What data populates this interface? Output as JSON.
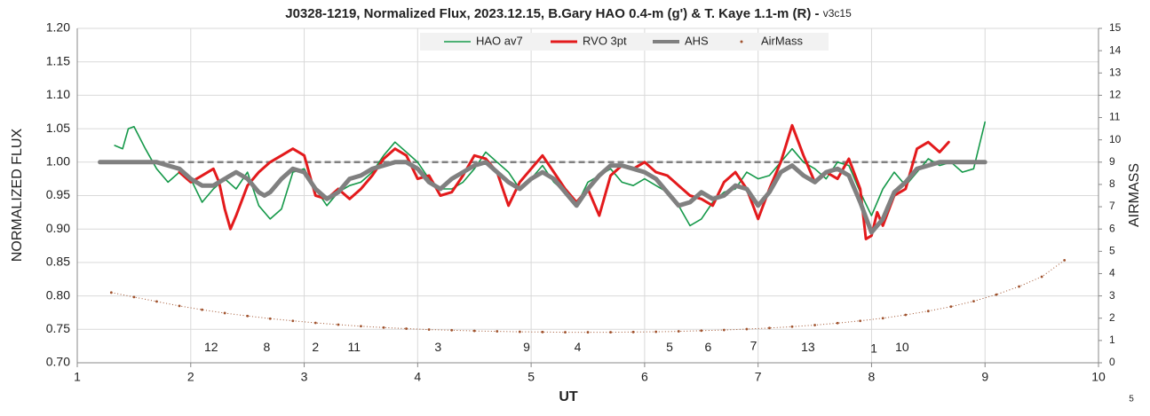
{
  "chart_data": {
    "type": "line",
    "title": "J0328-1219, Normalized Flux, 2023.12.15, B.Gary HAO 0.4-m (g') & T. Kaye 1.1-m (R) - ",
    "subtitle": "v3c15",
    "xlabel": "UT",
    "ylabel": "NORMALIZED FLUX",
    "y2label": "AIRMASS",
    "footnote": "5",
    "xlim": [
      1,
      10
    ],
    "xticks": [
      1,
      2,
      3,
      4,
      5,
      6,
      7,
      8,
      9,
      10
    ],
    "ylim": [
      0.7,
      1.2
    ],
    "yticks": [
      {
        "value": 0.7,
        "label": "0.70"
      },
      0.75,
      {
        "value": 0.8,
        "label": "0.80"
      },
      0.85,
      {
        "value": 0.9,
        "label": "0.90"
      },
      0.95,
      {
        "value": 1.0,
        "label": "1.00"
      },
      1.05,
      {
        "value": 1.1,
        "label": "1.10"
      },
      1.15,
      {
        "value": 1.2,
        "label": "1.20"
      }
    ],
    "y2lim": [
      0,
      15
    ],
    "y2ticks": [
      0,
      1,
      2,
      3,
      4,
      5,
      6,
      7,
      8,
      9,
      10,
      11,
      12,
      13,
      14,
      15
    ],
    "grid": true,
    "legend": "top",
    "hline": 1.0,
    "series": [
      {
        "name": "HAO av7",
        "color": "#16994a",
        "width": 1.6,
        "x": [
          1.33,
          1.4,
          1.45,
          1.5,
          1.6,
          1.7,
          1.8,
          1.9,
          2.0,
          2.1,
          2.2,
          2.3,
          2.4,
          2.5,
          2.6,
          2.7,
          2.8,
          2.9,
          3.0,
          3.1,
          3.2,
          3.3,
          3.4,
          3.5,
          3.6,
          3.7,
          3.8,
          3.9,
          4.0,
          4.1,
          4.2,
          4.3,
          4.4,
          4.5,
          4.6,
          4.7,
          4.8,
          4.9,
          5.0,
          5.1,
          5.2,
          5.3,
          5.4,
          5.5,
          5.6,
          5.7,
          5.8,
          5.9,
          6.0,
          6.1,
          6.2,
          6.3,
          6.4,
          6.5,
          6.6,
          6.7,
          6.8,
          6.9,
          7.0,
          7.1,
          7.2,
          7.3,
          7.4,
          7.5,
          7.6,
          7.7,
          7.8,
          7.9,
          8.0,
          8.1,
          8.2,
          8.3,
          8.4,
          8.5,
          8.6,
          8.7,
          8.8,
          8.9,
          9.0
        ],
        "values": [
          1.025,
          1.02,
          1.05,
          1.053,
          1.02,
          0.99,
          0.97,
          0.985,
          0.975,
          0.94,
          0.96,
          0.975,
          0.96,
          0.985,
          0.935,
          0.915,
          0.93,
          0.985,
          0.99,
          0.96,
          0.935,
          0.955,
          0.965,
          0.97,
          0.985,
          1.01,
          1.03,
          1.015,
          1.0,
          0.975,
          0.96,
          0.96,
          0.97,
          0.99,
          1.015,
          1.0,
          0.985,
          0.96,
          0.975,
          0.995,
          0.97,
          0.955,
          0.935,
          0.97,
          0.98,
          0.99,
          0.97,
          0.965,
          0.975,
          0.965,
          0.955,
          0.935,
          0.905,
          0.915,
          0.94,
          0.955,
          0.96,
          0.985,
          0.975,
          0.98,
          1.0,
          1.02,
          1.0,
          0.99,
          0.975,
          1.0,
          0.995,
          0.955,
          0.92,
          0.96,
          0.985,
          0.965,
          0.985,
          1.005,
          0.995,
          1.0,
          0.985,
          0.99,
          1.06
        ]
      },
      {
        "name": "RVO 3pt",
        "color": "#e31a1c",
        "width": 3,
        "x": [
          1.9,
          2.0,
          2.1,
          2.2,
          2.25,
          2.3,
          2.35,
          2.4,
          2.5,
          2.6,
          2.7,
          2.8,
          2.9,
          3.0,
          3.05,
          3.1,
          3.2,
          3.3,
          3.4,
          3.5,
          3.6,
          3.7,
          3.8,
          3.9,
          4.0,
          4.1,
          4.2,
          4.3,
          4.4,
          4.5,
          4.6,
          4.7,
          4.8,
          4.9,
          5.0,
          5.1,
          5.2,
          5.3,
          5.4,
          5.5,
          5.6,
          5.7,
          5.8,
          5.9,
          6.0,
          6.1,
          6.2,
          6.3,
          6.4,
          6.5,
          6.6,
          6.7,
          6.8,
          6.9,
          7.0,
          7.1,
          7.2,
          7.3,
          7.4,
          7.5,
          7.6,
          7.7,
          7.8,
          7.9,
          7.95,
          8.0,
          8.05,
          8.1,
          8.2,
          8.3,
          8.4,
          8.5,
          8.6,
          8.68
        ],
        "values": [
          0.985,
          0.97,
          0.98,
          0.99,
          0.97,
          0.93,
          0.9,
          0.92,
          0.965,
          0.985,
          1.0,
          1.01,
          1.02,
          1.01,
          0.98,
          0.95,
          0.945,
          0.96,
          0.945,
          0.96,
          0.98,
          1.005,
          1.02,
          1.01,
          0.975,
          0.98,
          0.95,
          0.955,
          0.98,
          1.01,
          1.005,
          0.985,
          0.935,
          0.97,
          0.99,
          1.01,
          0.985,
          0.96,
          0.94,
          0.96,
          0.92,
          0.98,
          0.995,
          0.99,
          1.0,
          0.985,
          0.98,
          0.965,
          0.95,
          0.945,
          0.935,
          0.97,
          0.985,
          0.96,
          0.915,
          0.96,
          1.0,
          1.055,
          1.01,
          0.97,
          0.985,
          0.975,
          1.005,
          0.96,
          0.885,
          0.89,
          0.925,
          0.905,
          0.95,
          0.96,
          1.02,
          1.03,
          1.015,
          1.03
        ]
      },
      {
        "name": "AHS",
        "color": "#808080",
        "width": 5,
        "x": [
          1.2,
          1.7,
          1.8,
          1.9,
          2.0,
          2.1,
          2.2,
          2.3,
          2.4,
          2.5,
          2.6,
          2.65,
          2.7,
          2.8,
          2.9,
          3.0,
          3.1,
          3.2,
          3.3,
          3.4,
          3.5,
          3.6,
          3.7,
          3.8,
          3.9,
          4.0,
          4.1,
          4.2,
          4.3,
          4.4,
          4.5,
          4.6,
          4.7,
          4.8,
          4.9,
          5.0,
          5.1,
          5.2,
          5.3,
          5.4,
          5.5,
          5.6,
          5.7,
          5.8,
          5.9,
          6.0,
          6.1,
          6.2,
          6.3,
          6.4,
          6.5,
          6.6,
          6.7,
          6.8,
          6.9,
          7.0,
          7.1,
          7.2,
          7.3,
          7.4,
          7.5,
          7.6,
          7.7,
          7.8,
          7.9,
          8.0,
          8.1,
          8.2,
          8.3,
          8.4,
          8.5,
          8.6,
          9.0
        ],
        "values": [
          1.0,
          1.0,
          0.995,
          0.99,
          0.975,
          0.965,
          0.965,
          0.975,
          0.985,
          0.975,
          0.955,
          0.95,
          0.955,
          0.975,
          0.99,
          0.985,
          0.96,
          0.945,
          0.955,
          0.975,
          0.98,
          0.99,
          0.995,
          1.0,
          1.0,
          0.99,
          0.97,
          0.96,
          0.975,
          0.985,
          0.995,
          1.0,
          0.985,
          0.97,
          0.96,
          0.975,
          0.985,
          0.975,
          0.955,
          0.935,
          0.96,
          0.98,
          0.995,
          0.995,
          0.99,
          0.985,
          0.975,
          0.955,
          0.935,
          0.94,
          0.955,
          0.945,
          0.95,
          0.965,
          0.96,
          0.935,
          0.955,
          0.985,
          0.995,
          0.98,
          0.97,
          0.985,
          0.99,
          0.98,
          0.94,
          0.895,
          0.915,
          0.955,
          0.97,
          0.99,
          0.995,
          1.0,
          1.0
        ]
      },
      {
        "name": "AirMass",
        "color": "#a0522d",
        "axis": "y2",
        "style": "dots",
        "x": [
          1.3,
          1.5,
          1.7,
          1.9,
          2.1,
          2.3,
          2.5,
          2.7,
          2.9,
          3.1,
          3.3,
          3.5,
          3.7,
          3.9,
          4.1,
          4.3,
          4.5,
          4.7,
          4.9,
          5.1,
          5.3,
          5.5,
          5.7,
          5.9,
          6.1,
          6.3,
          6.5,
          6.7,
          6.9,
          7.1,
          7.3,
          7.5,
          7.7,
          7.9,
          8.1,
          8.3,
          8.5,
          8.7,
          8.9,
          9.1,
          9.3,
          9.5,
          9.7
        ],
        "values": [
          3.15,
          2.95,
          2.75,
          2.55,
          2.38,
          2.23,
          2.1,
          1.98,
          1.88,
          1.79,
          1.71,
          1.64,
          1.58,
          1.53,
          1.49,
          1.46,
          1.43,
          1.41,
          1.39,
          1.38,
          1.37,
          1.37,
          1.37,
          1.38,
          1.39,
          1.41,
          1.44,
          1.47,
          1.51,
          1.56,
          1.62,
          1.69,
          1.78,
          1.88,
          2.0,
          2.15,
          2.32,
          2.52,
          2.76,
          3.06,
          3.42,
          3.86,
          4.6
        ]
      }
    ],
    "annotations": [
      {
        "text": "12",
        "x": 2.18,
        "y": 0.722
      },
      {
        "text": "8",
        "x": 2.67,
        "y": 0.722
      },
      {
        "text": "2",
        "x": 3.1,
        "y": 0.722
      },
      {
        "text": "11",
        "x": 3.44,
        "y": 0.722
      },
      {
        "text": "3",
        "x": 4.18,
        "y": 0.722
      },
      {
        "text": "9",
        "x": 4.96,
        "y": 0.722
      },
      {
        "text": "4",
        "x": 5.41,
        "y": 0.722
      },
      {
        "text": "5",
        "x": 6.22,
        "y": 0.722
      },
      {
        "text": "6",
        "x": 6.56,
        "y": 0.722
      },
      {
        "text": "7",
        "x": 6.96,
        "y": 0.724
      },
      {
        "text": "13",
        "x": 7.44,
        "y": 0.722
      },
      {
        "text": "1",
        "x": 8.02,
        "y": 0.72
      },
      {
        "text": "10",
        "x": 8.27,
        "y": 0.722
      }
    ]
  }
}
